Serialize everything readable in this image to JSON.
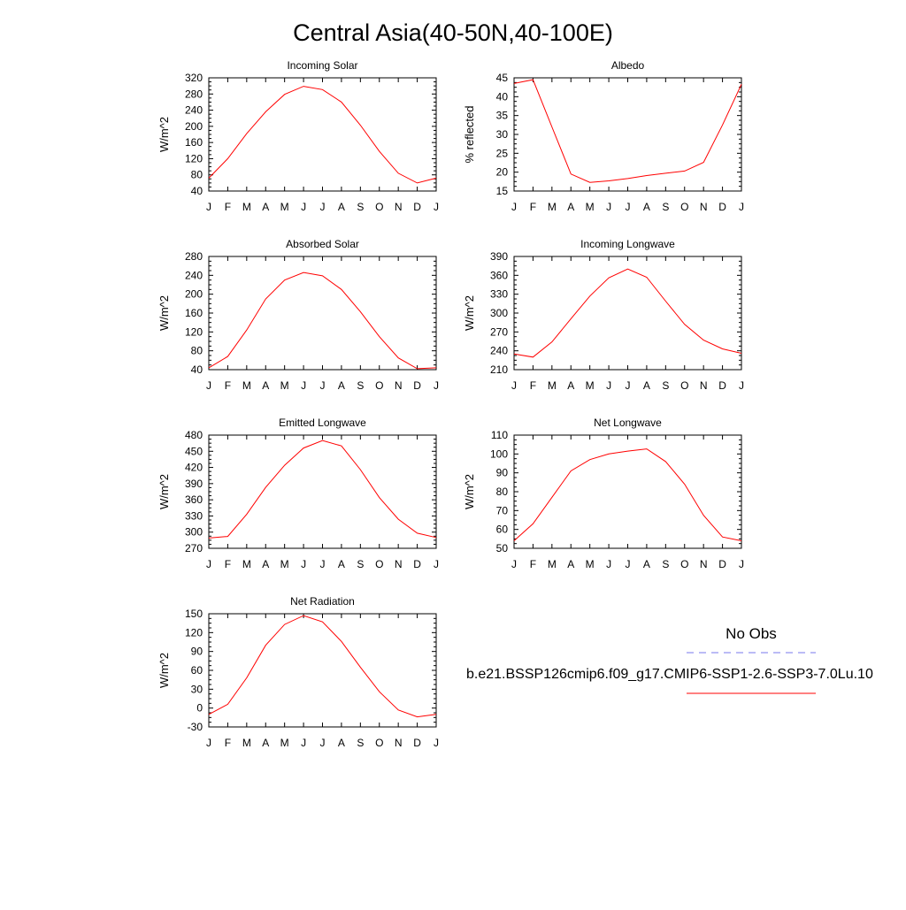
{
  "title": "Central Asia(40-50N,40-100E)",
  "legend": {
    "obs_label": "No Obs",
    "obs_color": "#7777ee",
    "model_label": "b.e21.BSSP126cmip6.f09_g17.CMIP6-SSP1-2.6-SSP3-7.0Lu.10",
    "model_color": "#ff0000"
  },
  "line_color": "#ff0000",
  "chart_data": [
    {
      "type": "line",
      "title": "Incoming Solar",
      "ylabel": "W/m^2",
      "ylim": [
        40,
        320
      ],
      "yticks": [
        40,
        80,
        120,
        160,
        200,
        240,
        280,
        320
      ],
      "categories": [
        "J",
        "F",
        "M",
        "A",
        "M",
        "J",
        "J",
        "A",
        "S",
        "O",
        "N",
        "D",
        "J"
      ],
      "series": [
        {
          "values": [
            72,
            120,
            182,
            236,
            279,
            299,
            291,
            260,
            203,
            138,
            84,
            60,
            72
          ]
        }
      ]
    },
    {
      "type": "line",
      "title": "Albedo",
      "ylabel": "% reflected",
      "ylim": [
        15,
        45
      ],
      "yticks": [
        15,
        20,
        25,
        30,
        35,
        40,
        45
      ],
      "categories": [
        "J",
        "F",
        "M",
        "A",
        "M",
        "J",
        "J",
        "A",
        "S",
        "O",
        "N",
        "D",
        "J"
      ],
      "series": [
        {
          "values": [
            43.5,
            44.5,
            32,
            19.5,
            17.3,
            17.7,
            18.3,
            19.1,
            19.7,
            20.3,
            22.6,
            32.5,
            43.3
          ]
        }
      ]
    },
    {
      "type": "line",
      "title": "Absorbed Solar",
      "ylabel": "W/m^2",
      "ylim": [
        40,
        280
      ],
      "yticks": [
        40,
        80,
        120,
        160,
        200,
        240,
        280
      ],
      "categories": [
        "J",
        "F",
        "M",
        "A",
        "M",
        "J",
        "J",
        "A",
        "S",
        "O",
        "N",
        "D",
        "J"
      ],
      "series": [
        {
          "values": [
            44,
            68,
            124,
            190,
            230,
            246,
            239,
            210,
            163,
            110,
            65,
            42,
            44
          ]
        }
      ]
    },
    {
      "type": "line",
      "title": "Incoming Longwave",
      "ylabel": "W/m^2",
      "ylim": [
        210,
        390
      ],
      "yticks": [
        210,
        240,
        270,
        300,
        330,
        360,
        390
      ],
      "categories": [
        "J",
        "F",
        "M",
        "A",
        "M",
        "J",
        "J",
        "A",
        "S",
        "O",
        "N",
        "D",
        "J"
      ],
      "series": [
        {
          "values": [
            235,
            230,
            254,
            291,
            327,
            356,
            370,
            357,
            319,
            282,
            257,
            243,
            236
          ]
        }
      ]
    },
    {
      "type": "line",
      "title": "Emitted Longwave",
      "ylabel": "W/m^2",
      "ylim": [
        270,
        480
      ],
      "yticks": [
        270,
        300,
        330,
        360,
        390,
        420,
        450,
        480
      ],
      "categories": [
        "J",
        "F",
        "M",
        "A",
        "M",
        "J",
        "J",
        "A",
        "S",
        "O",
        "N",
        "D",
        "J"
      ],
      "series": [
        {
          "values": [
            289,
            292,
            333,
            383,
            424,
            456,
            470,
            460,
            416,
            364,
            324,
            298,
            290
          ]
        }
      ]
    },
    {
      "type": "line",
      "title": "Net Longwave",
      "ylabel": "W/m^2",
      "ylim": [
        50,
        110
      ],
      "yticks": [
        50,
        60,
        70,
        80,
        90,
        100,
        110
      ],
      "categories": [
        "J",
        "F",
        "M",
        "A",
        "M",
        "J",
        "J",
        "A",
        "S",
        "O",
        "N",
        "D",
        "J"
      ],
      "series": [
        {
          "values": [
            54,
            63,
            77,
            91,
            97,
            100,
            101.5,
            102.7,
            96,
            84,
            67.5,
            56,
            54
          ]
        }
      ]
    },
    {
      "type": "line",
      "title": "Net Radiation",
      "ylabel": "W/m^2",
      "ylim": [
        -30,
        150
      ],
      "yticks": [
        -30,
        0,
        30,
        60,
        90,
        120,
        150
      ],
      "categories": [
        "J",
        "F",
        "M",
        "A",
        "M",
        "J",
        "J",
        "A",
        "S",
        "O",
        "N",
        "D",
        "J"
      ],
      "series": [
        {
          "values": [
            -10,
            6,
            48,
            100,
            133,
            147,
            137,
            106,
            65,
            26,
            -3,
            -14,
            -10
          ]
        }
      ]
    }
  ]
}
